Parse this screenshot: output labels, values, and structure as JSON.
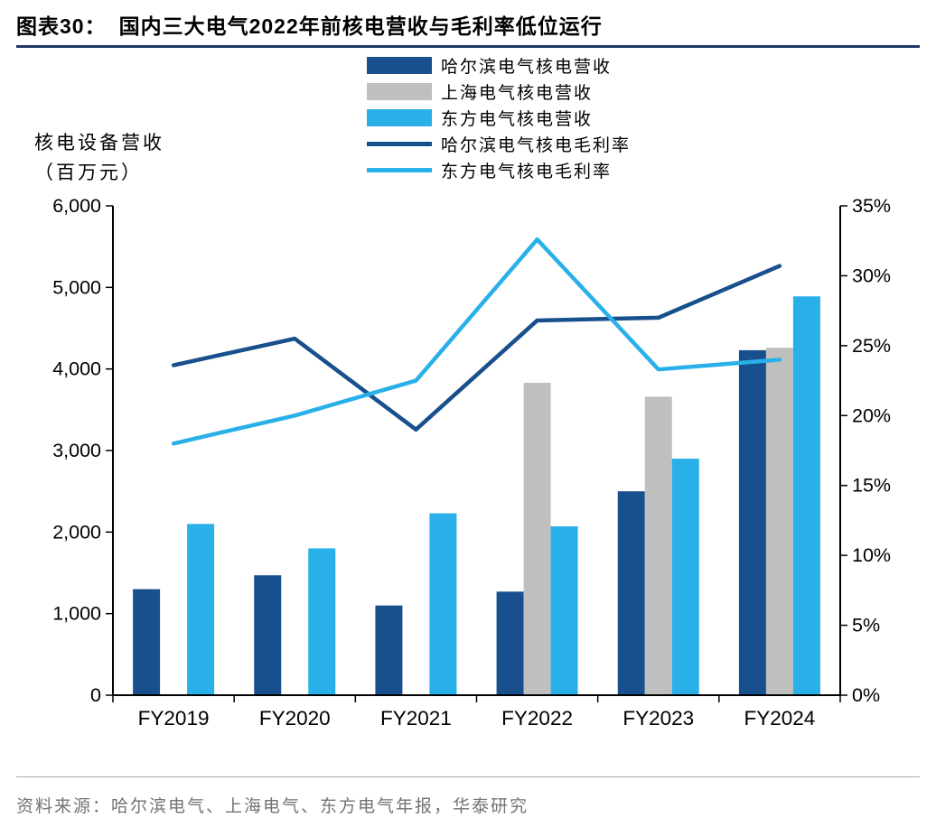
{
  "header": {
    "label": "图表30：",
    "caption": "国内三大电气2022年前核电营收与毛利率低位运行"
  },
  "axis_title": {
    "line1": "核电设备营收",
    "line2": "（百万元）"
  },
  "footer": {
    "source": "资料来源：哈尔滨电气、上海电气、东方电气年报，华泰研究"
  },
  "colors": {
    "dark_blue": "#17508C",
    "gray": "#BFBFBF",
    "light_blue": "#29B0E8",
    "title_rule": "#1F3864",
    "axis": "#000000",
    "source_text": "#737373"
  },
  "chart_data": {
    "type": "bar+line",
    "grid": false,
    "legend_position": "top-center",
    "categories": [
      "FY2019",
      "FY2020",
      "FY2021",
      "FY2022",
      "FY2023",
      "FY2024"
    ],
    "left_axis": {
      "title": "核电设备营收（百万元）",
      "min": 0,
      "max": 6000,
      "step": 1000,
      "tick_labels": [
        "0",
        "1,000",
        "2,000",
        "3,000",
        "4,000",
        "5,000",
        "6,000"
      ]
    },
    "right_axis": {
      "title": "毛利率",
      "min": 0,
      "max": 35,
      "step": 5,
      "tick_labels": [
        "0%",
        "5%",
        "10%",
        "15%",
        "20%",
        "25%",
        "30%",
        "35%"
      ]
    },
    "bar_series": [
      {
        "key": "harbin-revenue",
        "name": "哈尔滨电气核电营收",
        "color": "#17508C",
        "values": [
          1300,
          1470,
          1100,
          1270,
          2500,
          4230
        ]
      },
      {
        "key": "shanghai-revenue",
        "name": "上海电气核电营收",
        "color": "#BFBFBF",
        "values": [
          null,
          null,
          null,
          3830,
          3660,
          4260
        ]
      },
      {
        "key": "dongfang-revenue",
        "name": "东方电气核电营收",
        "color": "#29B0E8",
        "values": [
          2100,
          1800,
          2230,
          2070,
          2900,
          4890
        ]
      }
    ],
    "line_series": [
      {
        "key": "harbin-margin",
        "name": "哈尔滨电气核电毛利率",
        "color": "#17508C",
        "values": [
          23.6,
          25.5,
          19.0,
          26.8,
          27.0,
          30.7
        ]
      },
      {
        "key": "dongfang-margin",
        "name": "东方电气核电毛利率",
        "color": "#29B0E8",
        "values": [
          18.0,
          20.0,
          22.5,
          32.6,
          23.3,
          24.0
        ]
      }
    ]
  }
}
